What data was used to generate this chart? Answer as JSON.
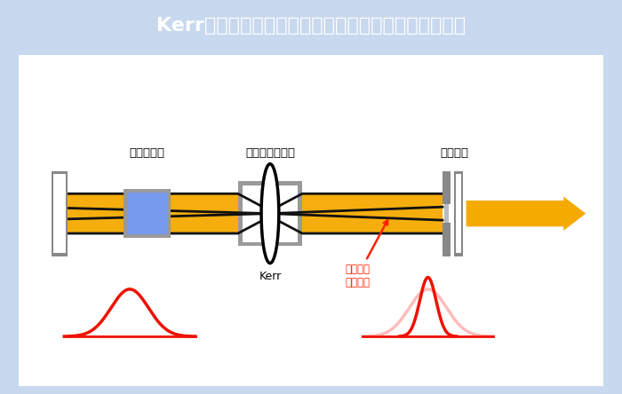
{
  "title": "Kerrレンズによる強度の大きいレーザーの取り出し方",
  "title_bg": "#4a6ee0",
  "title_color": "#ffffff",
  "title_fontsize": 16,
  "bg_color": "#c8d8ee",
  "panel_bg": "#ffffff",
  "panel_edge": "#ccccdd",
  "label_prism": "ブリズム対",
  "label_laser_rod": "レーザーロッド",
  "label_slit": "スリット",
  "label_kerr": "Kerr",
  "label_annotation": "光強度の\n大きい光",
  "beam_color": "#f5aa00",
  "mirror_color": "#888888",
  "mirror_inner": "#ffffff",
  "prism_color": "#7799ee",
  "prism_edge": "#556688",
  "rod_box_color": "#999999",
  "rod_inner_color": "#ffffff",
  "kerr_color": "#000000",
  "arrow_color": "#f5aa00",
  "annotation_color": "#ff2200",
  "gauss_red": "#ee1100",
  "gauss_pink": "#ffbbbb",
  "line_color": "#111111"
}
